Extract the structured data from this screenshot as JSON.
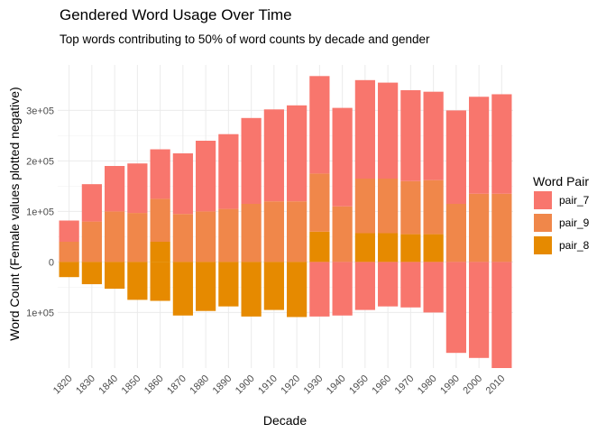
{
  "chart_data": {
    "type": "bar",
    "title": "Gendered Word Usage Over Time",
    "subtitle": "Top words contributing to 50% of word counts by decade and gender",
    "xlabel": "Decade",
    "ylabel": "Word Count (Female values plotted negative)",
    "categories": [
      "1820",
      "1830",
      "1840",
      "1850",
      "1860",
      "1870",
      "1880",
      "1890",
      "1900",
      "1910",
      "1920",
      "1930",
      "1940",
      "1950",
      "1960",
      "1970",
      "1980",
      "1990",
      "2000",
      "2010"
    ],
    "ylim": [
      -210000,
      390000
    ],
    "y_ticks": [
      -100000,
      0,
      100000,
      200000,
      300000
    ],
    "y_tick_labels": [
      "1e+05",
      "0",
      "1e+05",
      "2e+05",
      "3e+05"
    ],
    "grid": true,
    "legend": {
      "title": "Word Pair",
      "position": "right",
      "entries": [
        "pair_7",
        "pair_9",
        "pair_8"
      ]
    },
    "colors": {
      "pair_7": "#F8766D",
      "pair_9": "#F0874A",
      "pair_8": "#E68A00"
    },
    "series": [
      {
        "name": "pair_8",
        "values": [
          0,
          0,
          0,
          0,
          40000,
          0,
          0,
          0,
          0,
          0,
          0,
          60000,
          0,
          57000,
          57000,
          55000,
          55000,
          0,
          0,
          0
        ]
      },
      {
        "name": "pair_9",
        "values": [
          40000,
          80000,
          100000,
          97000,
          85000,
          95000,
          100000,
          105000,
          115000,
          120000,
          120000,
          115000,
          110000,
          108000,
          108000,
          105000,
          107000,
          115000,
          135000,
          135000
        ]
      },
      {
        "name": "pair_7",
        "values": [
          42000,
          74000,
          90000,
          98000,
          98000,
          120000,
          140000,
          148000,
          170000,
          182000,
          190000,
          193000,
          195000,
          195000,
          190000,
          180000,
          175000,
          185000,
          192000,
          197000
        ]
      },
      {
        "name": "pair_7",
        "values": [
          0,
          0,
          0,
          0,
          0,
          0,
          0,
          0,
          0,
          0,
          0,
          -108000,
          -106000,
          -95000,
          -88000,
          -90000,
          -100000,
          -180000,
          -190000,
          -210000
        ]
      },
      {
        "name": "pair_8",
        "values": [
          -30000,
          -44000,
          -53000,
          -75000,
          -77000,
          -106000,
          -97000,
          -88000,
          -108000,
          -95000,
          -109000,
          0,
          0,
          0,
          0,
          0,
          0,
          0,
          0,
          0
        ]
      }
    ]
  }
}
